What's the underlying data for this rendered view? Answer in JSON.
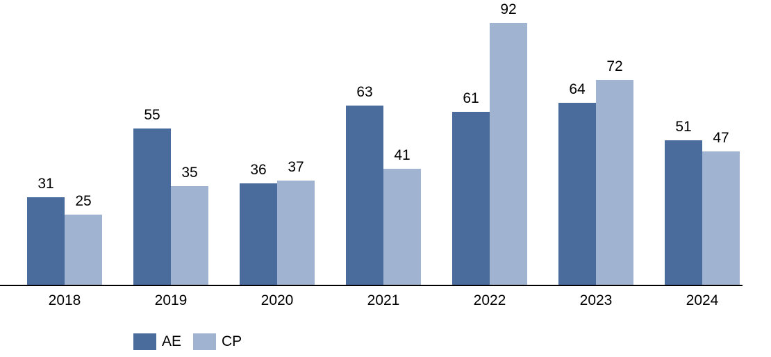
{
  "chart_data": {
    "type": "bar",
    "title": "",
    "categories": [
      "2018",
      "2019",
      "2020",
      "2021",
      "2022",
      "2023",
      "2024"
    ],
    "series": [
      {
        "name": "AE",
        "color": "#4a6c9c",
        "values": [
          31,
          55,
          36,
          63,
          61,
          64,
          51
        ]
      },
      {
        "name": "CP",
        "color": "#a0b3d1",
        "values": [
          25,
          35,
          37,
          41,
          92,
          72,
          47
        ]
      }
    ],
    "ylim": [
      0,
      100
    ],
    "grid": false,
    "data_labels": true,
    "legend_position": "bottom-left",
    "axis_line_color": "#000000",
    "label_color": "#000000"
  }
}
